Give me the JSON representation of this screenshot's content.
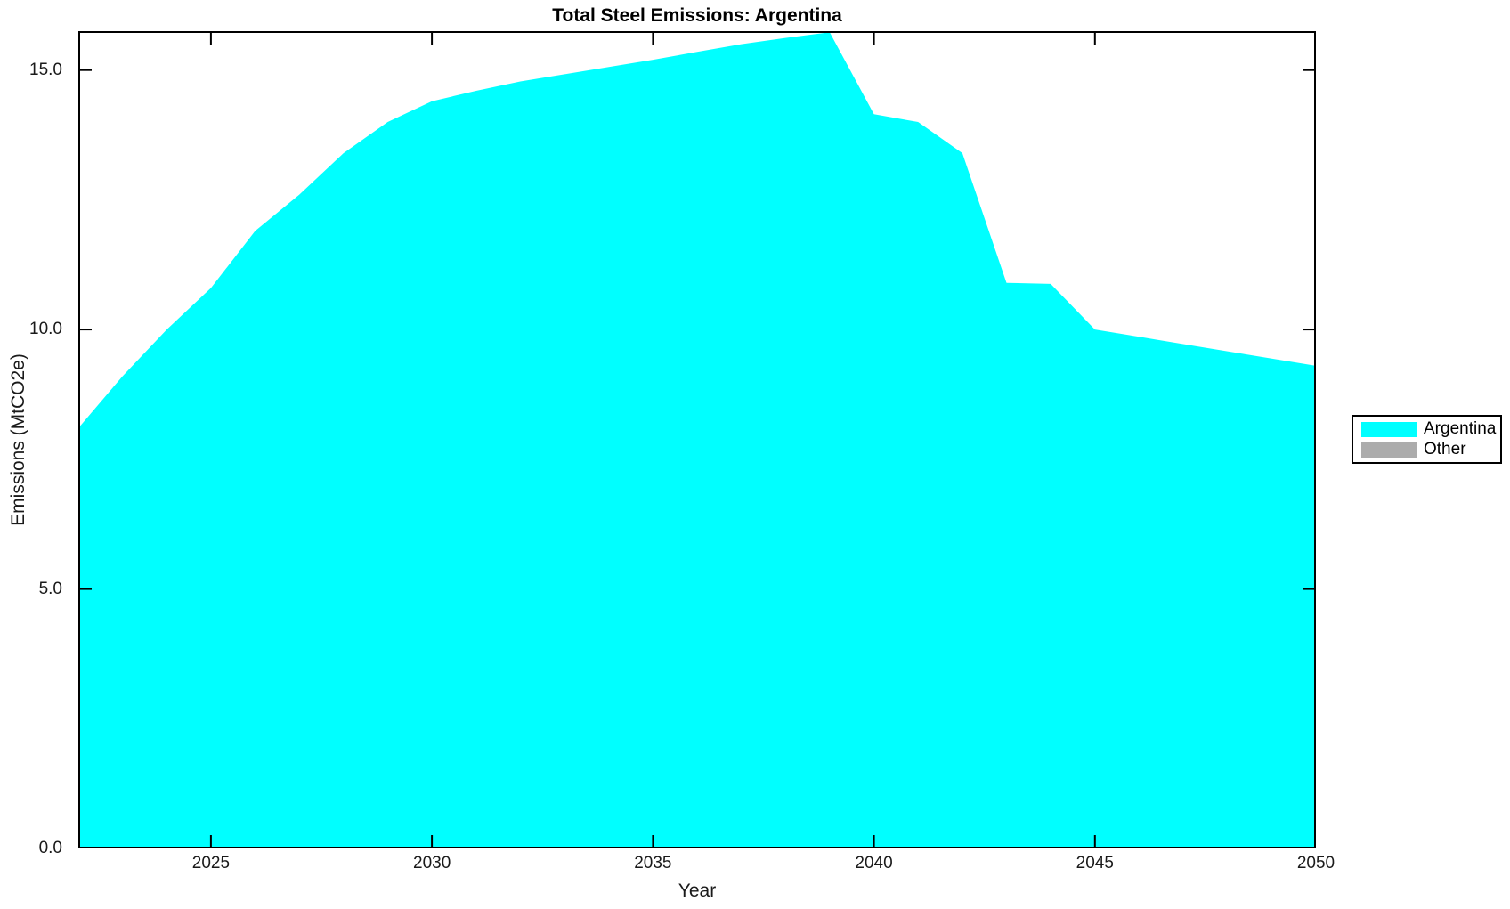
{
  "chart_data": {
    "type": "area",
    "title": "Total Steel Emissions: Argentina",
    "xlabel": "Year",
    "ylabel": "Emissions (MtCO2e)",
    "x": [
      2022,
      2023,
      2024,
      2025,
      2026,
      2027,
      2028,
      2029,
      2030,
      2031,
      2032,
      2033,
      2034,
      2035,
      2036,
      2037,
      2038,
      2039,
      2040,
      2041,
      2042,
      2043,
      2044,
      2045,
      2046,
      2047,
      2048,
      2049,
      2050
    ],
    "series": [
      {
        "name": "Argentina",
        "color": "#00FFFF",
        "values": [
          8.1,
          9.1,
          10.0,
          10.8,
          11.9,
          12.6,
          13.4,
          14.0,
          14.4,
          14.6,
          14.78,
          14.92,
          15.06,
          15.2,
          15.35,
          15.5,
          15.62,
          15.73,
          14.15,
          14.0,
          13.4,
          10.9,
          10.88,
          10.0,
          9.86,
          9.72,
          9.58,
          9.44,
          9.3
        ]
      },
      {
        "name": "Other",
        "color": "#ACACAC",
        "values": [
          0,
          0,
          0,
          0,
          0,
          0,
          0,
          0,
          0,
          0,
          0,
          0,
          0,
          0,
          0,
          0,
          0,
          0,
          0,
          0,
          0,
          0,
          0,
          0,
          0,
          0,
          0,
          0,
          0
        ]
      }
    ],
    "xlim": [
      2022,
      2050
    ],
    "ylim": [
      0,
      15.75
    ],
    "xticks": {
      "values": [
        2025,
        2030,
        2035,
        2040,
        2045,
        2050
      ],
      "labels": [
        "2025",
        "2030",
        "2035",
        "2040",
        "2045",
        "2050"
      ]
    },
    "yticks": {
      "values": [
        0,
        5,
        10,
        15
      ],
      "labels": [
        "0.0",
        "5.0",
        "10.0",
        "15.0"
      ]
    },
    "grid": false,
    "legend_position": "right-outside",
    "background_color": "#FFFFFF",
    "frame_color": "#000000"
  }
}
